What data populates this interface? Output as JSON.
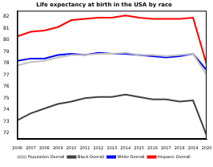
{
  "chart_data": {
    "type": "line",
    "title": "Life expectancy at birth in the USA by race",
    "x": [
      2006,
      2007,
      2008,
      2009,
      2010,
      2011,
      2012,
      2013,
      2014,
      2015,
      2016,
      2017,
      2018,
      2019,
      2020
    ],
    "series": [
      {
        "name": "Population Overall",
        "color": "#c0c0c0",
        "values": [
          77.8,
          78.1,
          78.2,
          78.5,
          78.7,
          78.7,
          78.8,
          78.8,
          78.9,
          78.7,
          78.7,
          78.6,
          78.7,
          78.8,
          77.0
        ]
      },
      {
        "name": "Black Overall",
        "color": "#404040",
        "values": [
          73.1,
          73.7,
          74.1,
          74.5,
          74.7,
          75.0,
          75.1,
          75.1,
          75.3,
          75.1,
          74.9,
          74.9,
          74.7,
          74.8,
          71.8
        ]
      },
      {
        "name": "White Overall",
        "color": "#0000ff",
        "values": [
          78.2,
          78.4,
          78.4,
          78.7,
          78.8,
          78.7,
          78.9,
          78.8,
          78.8,
          78.7,
          78.6,
          78.5,
          78.6,
          78.8,
          77.4
        ]
      },
      {
        "name": "Hispanic Overall",
        "color": "#ff0000",
        "values": [
          80.3,
          80.7,
          80.8,
          81.1,
          81.7,
          81.8,
          81.9,
          81.9,
          82.1,
          81.9,
          81.8,
          81.8,
          81.8,
          81.9,
          77.9
        ]
      }
    ],
    "xlim": [
      2006,
      2020
    ],
    "xticks": [
      2006,
      2007,
      2008,
      2009,
      2010,
      2011,
      2012,
      2013,
      2014,
      2015,
      2016,
      2017,
      2018,
      2019,
      2020
    ],
    "ylim": [
      71.5,
      82.5
    ],
    "yticks": [
      72,
      73,
      74,
      75,
      76,
      77,
      78,
      79,
      80,
      81,
      82
    ],
    "grid": false,
    "legend": "bottom"
  }
}
